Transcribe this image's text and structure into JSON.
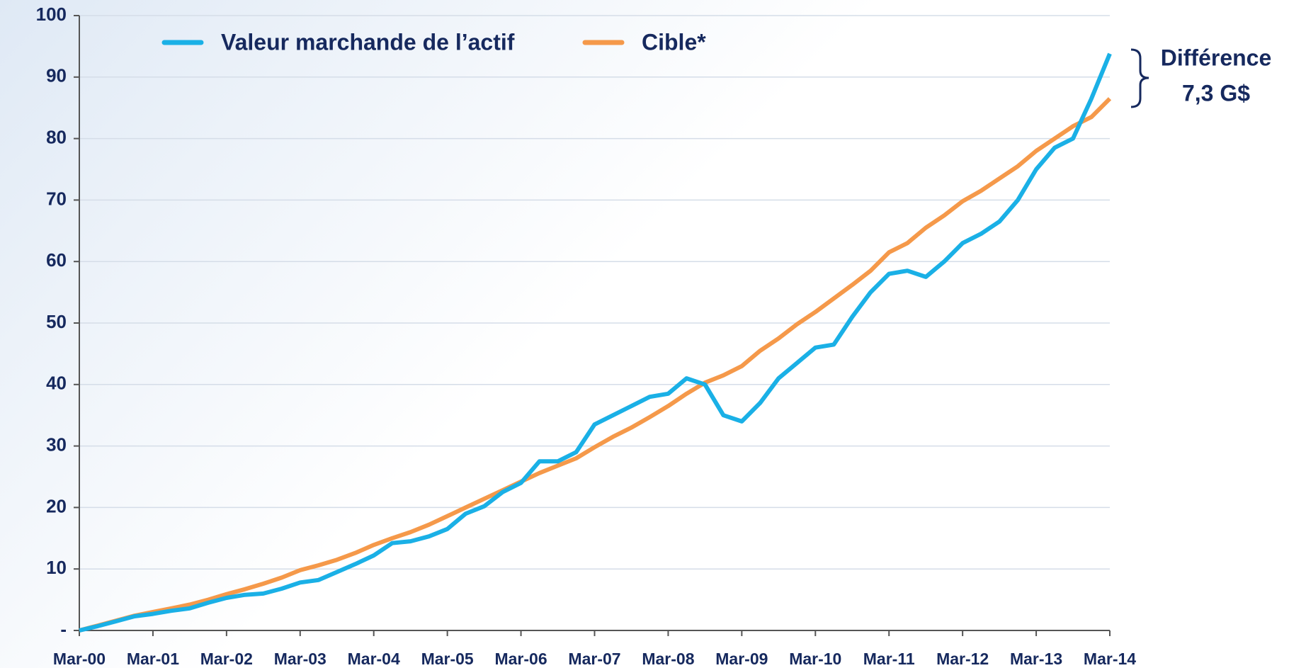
{
  "chart_data": {
    "type": "line",
    "categories": [
      "Mar-00",
      null,
      null,
      null,
      "Mar-01",
      null,
      null,
      null,
      "Mar-02",
      null,
      null,
      null,
      "Mar-03",
      null,
      null,
      null,
      "Mar-04",
      null,
      null,
      null,
      "Mar-05",
      null,
      null,
      null,
      "Mar-06",
      null,
      null,
      null,
      "Mar-07",
      null,
      null,
      null,
      "Mar-08",
      null,
      null,
      null,
      "Mar-09",
      null,
      null,
      null,
      "Mar-10",
      null,
      null,
      null,
      "Mar-11",
      null,
      null,
      null,
      "Mar-12",
      null,
      null,
      null,
      "Mar-13",
      null,
      null,
      null,
      "Mar-14"
    ],
    "series": [
      {
        "name": "Valeur marchande de l’actif",
        "color": "#1ab0e6",
        "values": [
          0,
          0.7,
          1.5,
          2.3,
          2.7,
          3.2,
          3.6,
          4.5,
          5.3,
          5.8,
          6.0,
          6.8,
          7.8,
          8.2,
          9.5,
          10.8,
          12.2,
          14.2,
          14.5,
          15.3,
          16.5,
          19.0,
          20.2,
          22.5,
          24.0,
          27.5,
          27.5,
          29.0,
          33.5,
          35.0,
          36.5,
          38.0,
          38.5,
          41.0,
          40.0,
          35.0,
          34.0,
          37.0,
          41.0,
          43.5,
          46.0,
          46.5,
          51.0,
          55.0,
          58.0,
          58.5,
          57.5,
          60.0,
          63.0,
          64.5,
          66.5,
          70.0,
          75.0,
          78.5,
          80.0,
          86.5,
          93.8
        ]
      },
      {
        "name": "Cible*",
        "color": "#f5994a",
        "values": [
          0,
          0.8,
          1.6,
          2.4,
          3.0,
          3.6,
          4.2,
          5.0,
          5.9,
          6.7,
          7.6,
          8.6,
          9.8,
          10.6,
          11.5,
          12.6,
          13.9,
          15.0,
          16.0,
          17.2,
          18.6,
          20.0,
          21.4,
          22.8,
          24.2,
          25.6,
          26.8,
          28.0,
          29.8,
          31.5,
          33.0,
          34.7,
          36.5,
          38.5,
          40.3,
          41.5,
          43.0,
          45.5,
          47.5,
          49.8,
          51.8,
          54.0,
          56.2,
          58.5,
          61.5,
          63.0,
          65.5,
          67.5,
          69.8,
          71.5,
          73.5,
          75.5,
          78.0,
          80.0,
          82.0,
          83.5,
          86.5
        ]
      }
    ],
    "ylim": [
      0,
      100
    ],
    "yticks": [
      {
        "value": 0,
        "label": "-"
      },
      10,
      20,
      30,
      40,
      50,
      60,
      70,
      80,
      90,
      100
    ],
    "grid": true,
    "legend": "top",
    "annotations": [
      "Différence",
      "7,3 G$"
    ]
  }
}
